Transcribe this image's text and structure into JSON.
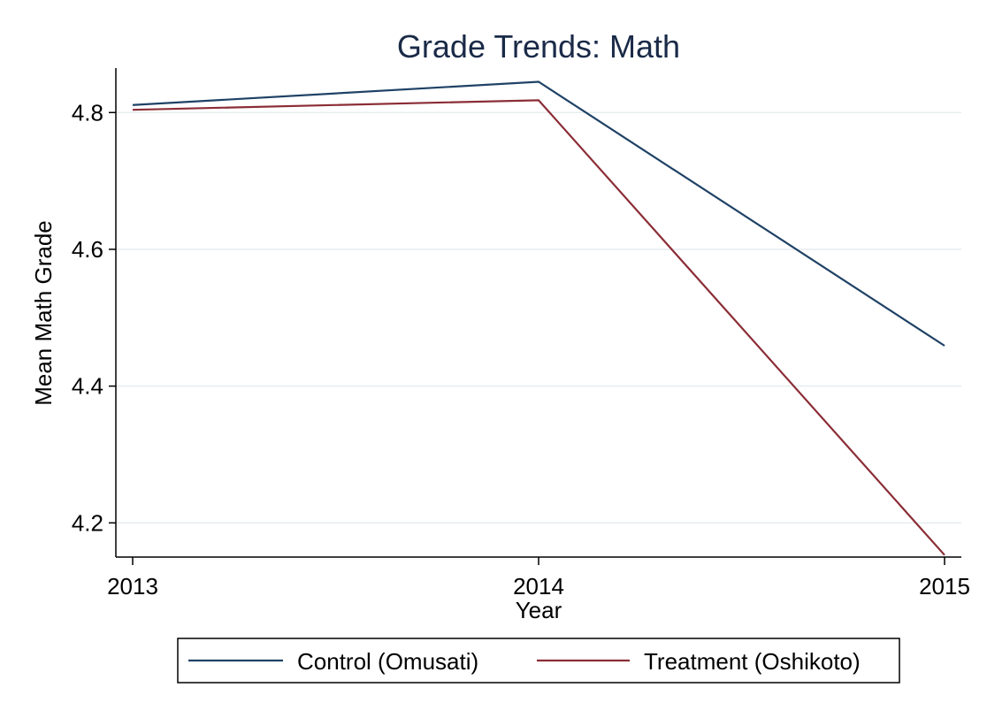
{
  "chart_data": {
    "type": "line",
    "title": "Grade Trends: Math",
    "xlabel": "Year",
    "ylabel": "Mean Math Grade",
    "x": [
      "2013",
      "2014",
      "2015"
    ],
    "ylim": [
      4.15,
      4.865
    ],
    "yticks": [
      4.2,
      4.4,
      4.6,
      4.8
    ],
    "ytick_labels": [
      "4.2",
      "4.4",
      "4.6",
      "4.8"
    ],
    "grid": true,
    "legend_position": "bottom",
    "series": [
      {
        "name": "Control (Omusati)",
        "color": "#1f4266",
        "values": [
          4.811,
          4.845,
          4.459
        ]
      },
      {
        "name": "Treatment (Oshikoto)",
        "color": "#8b2d36",
        "values": [
          4.804,
          4.818,
          4.153
        ]
      }
    ]
  }
}
